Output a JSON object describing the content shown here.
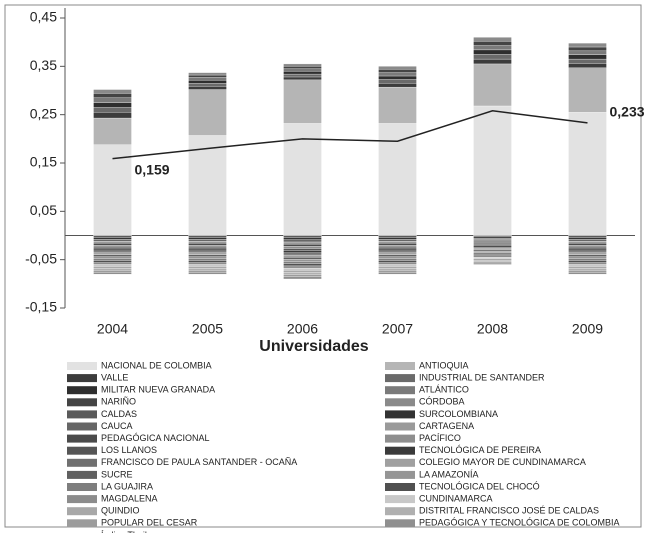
{
  "chart_data": {
    "type": "bar",
    "stacked": true,
    "x_label": "Universidades",
    "categories": [
      "2004",
      "2005",
      "2006",
      "2007",
      "2008",
      "2009"
    ],
    "ylim": [
      -0.15,
      0.45
    ],
    "yticks": [
      {
        "value": -0.15,
        "label": "-0,15"
      },
      {
        "value": -0.05,
        "label": "-0,05"
      },
      {
        "value": 0.05,
        "label": "0,05"
      },
      {
        "value": 0.15,
        "label": "0,15"
      },
      {
        "value": 0.25,
        "label": "0,25"
      },
      {
        "value": 0.35,
        "label": "0,35"
      },
      {
        "value": 0.45,
        "label": "0,45"
      }
    ],
    "grid": false,
    "series": [
      {
        "name": "NACIONAL DE COLOMBIA",
        "color": "#e2e2e2",
        "values": [
          0.188,
          0.207,
          0.232,
          0.232,
          0.268,
          0.255
        ]
      },
      {
        "name": "ANTIOQUIA",
        "color": "#b5b5b5",
        "values": [
          0.055,
          0.095,
          0.09,
          0.075,
          0.087,
          0.092
        ]
      },
      {
        "name": "VALLE",
        "color": "#3c3c3c",
        "values": [
          0.012,
          0.007,
          0.006,
          0.008,
          0.01,
          0.009
        ]
      },
      {
        "name": "INDUSTRIAL DE SANTANDER",
        "color": "#6a6a6a",
        "values": [
          0.01,
          0.006,
          0.006,
          0.008,
          0.01,
          0.009
        ]
      },
      {
        "name": "MILITAR NUEVA GRANADA",
        "color": "#2e2e2e",
        "values": [
          0.01,
          0.006,
          0.006,
          0.007,
          0.009,
          0.009
        ]
      },
      {
        "name": "ATLÁNTICO",
        "color": "#7a7a7a",
        "values": [
          0.01,
          0.006,
          0.005,
          0.007,
          0.009,
          0.008
        ]
      },
      {
        "name": "NARIÑO",
        "color": "#444444",
        "values": [
          0.009,
          0.005,
          0.005,
          0.007,
          0.009,
          0.008
        ]
      },
      {
        "name": "CÓRDOBA",
        "color": "#8a8a8a",
        "values": [
          0.008,
          0.005,
          0.005,
          0.006,
          0.008,
          0.008
        ]
      },
      {
        "name": "CALDAS",
        "color": "#5a5a5a",
        "values": [
          -0.004,
          -0.004,
          -0.0045,
          -0.004,
          -0.003,
          -0.004
        ]
      },
      {
        "name": "SURCOLOMBIANA",
        "color": "#333333",
        "values": [
          -0.004,
          -0.004,
          -0.0045,
          -0.004,
          -0.003,
          -0.004
        ]
      },
      {
        "name": "CAUCA",
        "color": "#666666",
        "values": [
          -0.004,
          -0.004,
          -0.0045,
          -0.004,
          -0.003,
          -0.004
        ]
      },
      {
        "name": "CARTAGENA",
        "color": "#9a9a9a",
        "values": [
          -0.004,
          -0.004,
          -0.0045,
          -0.004,
          -0.003,
          -0.004
        ]
      },
      {
        "name": "PEDAGÓGICA NACIONAL",
        "color": "#4a4a4a",
        "values": [
          -0.004,
          -0.004,
          -0.0045,
          -0.004,
          -0.003,
          -0.004
        ]
      },
      {
        "name": "PACÍFICO",
        "color": "#8e8e8e",
        "values": [
          -0.004,
          -0.004,
          -0.0045,
          -0.004,
          -0.003,
          -0.004
        ]
      },
      {
        "name": "LOS LLANOS",
        "color": "#555555",
        "values": [
          -0.004,
          -0.004,
          -0.0045,
          -0.004,
          -0.003,
          -0.004
        ]
      },
      {
        "name": "TECNOLÓGICA DE PEREIRA",
        "color": "#3a3a3a",
        "values": [
          -0.004,
          -0.004,
          -0.0045,
          -0.004,
          -0.003,
          -0.004
        ]
      },
      {
        "name": "FRANCISCO DE PAULA SANTANDER - OCAÑA",
        "color": "#707070",
        "values": [
          -0.004,
          -0.004,
          -0.0045,
          -0.004,
          -0.003,
          -0.004
        ]
      },
      {
        "name": "COLEGIO MAYOR DE CUNDINAMARCA",
        "color": "#a0a0a0",
        "values": [
          -0.004,
          -0.004,
          -0.0045,
          -0.004,
          -0.003,
          -0.004
        ]
      },
      {
        "name": "SUCRE",
        "color": "#606060",
        "values": [
          -0.004,
          -0.004,
          -0.0045,
          -0.004,
          -0.003,
          -0.004
        ]
      },
      {
        "name": "LA AMAZONÍA",
        "color": "#959595",
        "values": [
          -0.004,
          -0.004,
          -0.0045,
          -0.004,
          -0.003,
          -0.004
        ]
      },
      {
        "name": "LA GUAJIRA",
        "color": "#7e7e7e",
        "values": [
          -0.004,
          -0.004,
          -0.0045,
          -0.004,
          -0.003,
          -0.004
        ]
      },
      {
        "name": "TECNOLÓGICA DEL CHOCÓ",
        "color": "#505050",
        "values": [
          -0.004,
          -0.004,
          -0.0045,
          -0.004,
          -0.003,
          -0.004
        ]
      },
      {
        "name": "MAGDALENA",
        "color": "#8c8c8c",
        "values": [
          -0.004,
          -0.004,
          -0.0045,
          -0.004,
          -0.003,
          -0.004
        ]
      },
      {
        "name": "CUNDINAMARCA",
        "color": "#c8c8c8",
        "values": [
          -0.004,
          -0.004,
          -0.0045,
          -0.004,
          -0.003,
          -0.004
        ]
      },
      {
        "name": "QUINDIO",
        "color": "#a8a8a8",
        "values": [
          -0.004,
          -0.004,
          -0.0045,
          -0.004,
          -0.003,
          -0.004
        ]
      },
      {
        "name": "DISTRITAL FRANCISCO JOSÉ DE CALDAS",
        "color": "#b0b0b0",
        "values": [
          -0.004,
          -0.004,
          -0.0045,
          -0.004,
          -0.003,
          -0.004
        ]
      },
      {
        "name": "POPULAR DEL CESAR",
        "color": "#9c9c9c",
        "values": [
          -0.004,
          -0.004,
          -0.0045,
          -0.004,
          -0.003,
          -0.004
        ]
      },
      {
        "name": "PEDAGÓGICA Y TECNOLÓGICA DE COLOMBIA",
        "color": "#8f8f8f",
        "values": [
          -0.004,
          -0.004,
          -0.0045,
          -0.004,
          -0.003,
          -0.004
        ]
      }
    ],
    "line": {
      "name": "Índice Theil",
      "color": "#222222",
      "values": [
        0.159,
        0.18,
        0.2,
        0.195,
        0.258,
        0.233
      ],
      "value_labels": [
        "0,159",
        null,
        null,
        null,
        null,
        "0,233"
      ]
    }
  }
}
